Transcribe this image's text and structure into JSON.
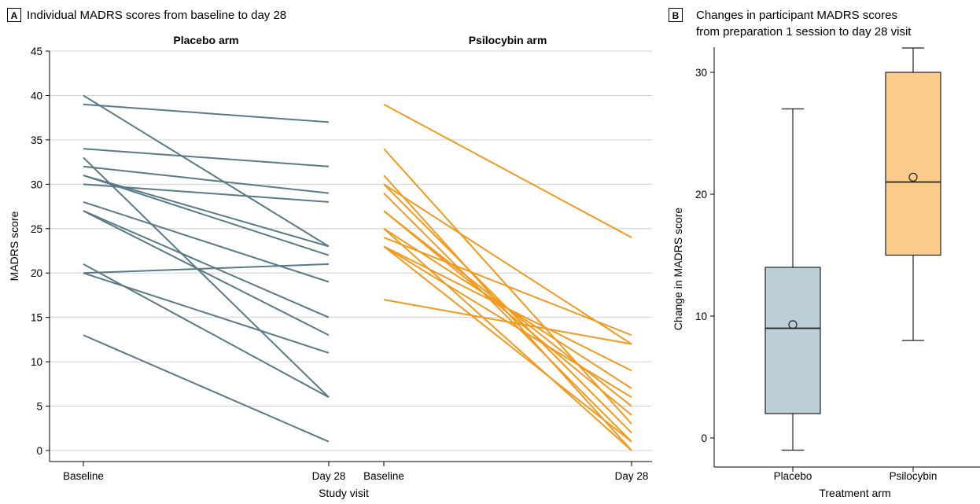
{
  "panel_a": {
    "letter": "A",
    "title": "Individual MADRS scores from baseline to day 28",
    "ylabel": "MADRS score",
    "xlabel": "Study visit"
  },
  "panel_b": {
    "letter": "B",
    "title_line1": "Changes in participant MADRS scores",
    "title_line2": "from preparation 1 session to day 28 visit",
    "ylabel": "Change in MADRS score",
    "xlabel": "Treatment arm"
  },
  "colors": {
    "placebo": "#587a88",
    "psilocybin": "#f29a1f",
    "placebo_fill": "#bccfd8",
    "psilocybin_fill": "#fbcb8a"
  },
  "chart_data": [
    {
      "type": "line",
      "title": "Individual MADRS scores from baseline to day 28",
      "ylabel": "MADRS score",
      "xlabel": "Study visit",
      "ylim": [
        0,
        45
      ],
      "yticks": [
        0,
        5,
        10,
        15,
        20,
        25,
        30,
        35,
        40,
        45
      ],
      "grid": true,
      "panels": [
        {
          "name": "Placebo arm",
          "x": [
            "Baseline",
            "Day 28"
          ],
          "series": [
            {
              "values": [
                40,
                23
              ]
            },
            {
              "values": [
                39,
                37
              ]
            },
            {
              "values": [
                34,
                32
              ]
            },
            {
              "values": [
                33,
                6
              ]
            },
            {
              "values": [
                32,
                29
              ]
            },
            {
              "values": [
                31,
                23
              ]
            },
            {
              "values": [
                31,
                22
              ]
            },
            {
              "values": [
                30,
                28
              ]
            },
            {
              "values": [
                28,
                19
              ]
            },
            {
              "values": [
                27,
                15
              ]
            },
            {
              "values": [
                27,
                13
              ]
            },
            {
              "values": [
                21,
                6
              ]
            },
            {
              "values": [
                20,
                21
              ]
            },
            {
              "values": [
                20,
                11
              ]
            },
            {
              "values": [
                13,
                1
              ]
            }
          ]
        },
        {
          "name": "Psilocybin arm",
          "x": [
            "Baseline",
            "Day 28"
          ],
          "series": [
            {
              "values": [
                39,
                24
              ]
            },
            {
              "values": [
                34,
                3
              ]
            },
            {
              "values": [
                31,
                0
              ]
            },
            {
              "values": [
                30,
                2
              ]
            },
            {
              "values": [
                30,
                12
              ]
            },
            {
              "values": [
                29,
                1
              ]
            },
            {
              "values": [
                27,
                4
              ]
            },
            {
              "values": [
                27,
                5
              ]
            },
            {
              "values": [
                25,
                7
              ]
            },
            {
              "values": [
                25,
                0
              ]
            },
            {
              "values": [
                24,
                13
              ]
            },
            {
              "values": [
                23,
                6
              ]
            },
            {
              "values": [
                23,
                9
              ]
            },
            {
              "values": [
                23,
                1
              ]
            },
            {
              "values": [
                17,
                12
              ]
            }
          ]
        }
      ]
    },
    {
      "type": "box",
      "title": "Changes in participant MADRS scores from preparation 1 session to day 28 visit",
      "ylabel": "Change in MADRS score",
      "xlabel": "Treatment arm",
      "ylim": [
        -2,
        32
      ],
      "yticks": [
        0,
        10,
        20,
        30
      ],
      "grid": false,
      "categories": [
        "Placebo",
        "Psilocybin"
      ],
      "boxes": [
        {
          "category": "Placebo",
          "min": -1,
          "q1": 2,
          "median": 9,
          "q3": 14,
          "max": 27,
          "mean": 9.3
        },
        {
          "category": "Psilocybin",
          "min": 8,
          "q1": 15,
          "median": 21,
          "q3": 30,
          "max": 32,
          "mean": 21.4
        }
      ]
    }
  ]
}
